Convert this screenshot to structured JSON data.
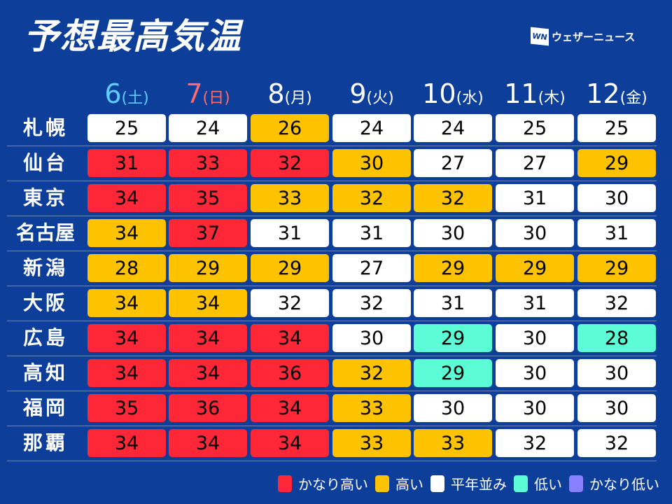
{
  "title": "予想最高気温",
  "brand": {
    "mark": "WN",
    "name": "ウェザーニュース"
  },
  "colors": {
    "background": "#0d3f9a",
    "r": "#fe2737",
    "y": "#fdc300",
    "w": "#ffffff",
    "t": "#5cfcd6",
    "p": "#8a80ff",
    "saturday": "#5ecdff",
    "sunday": "#ff6a6a"
  },
  "days": [
    {
      "day": "6",
      "weekday": "(土)",
      "color": "#5ecdff"
    },
    {
      "day": "7",
      "weekday": "(日)",
      "color": "#ff6a6a"
    },
    {
      "day": "8",
      "weekday": "(月)",
      "color": "#ffffff"
    },
    {
      "day": "9",
      "weekday": "(火)",
      "color": "#ffffff"
    },
    {
      "day": "10",
      "weekday": "(水)",
      "color": "#ffffff"
    },
    {
      "day": "11",
      "weekday": "(木)",
      "color": "#ffffff"
    },
    {
      "day": "12",
      "weekday": "(金)",
      "color": "#ffffff"
    }
  ],
  "rows": [
    {
      "city": "札幌",
      "temps": [
        "25",
        "24",
        "26",
        "24",
        "24",
        "25",
        "25"
      ],
      "levels": [
        "w",
        "w",
        "y",
        "w",
        "w",
        "w",
        "w"
      ]
    },
    {
      "city": "仙台",
      "temps": [
        "31",
        "33",
        "32",
        "30",
        "27",
        "27",
        "29"
      ],
      "levels": [
        "r",
        "r",
        "r",
        "y",
        "w",
        "w",
        "y"
      ]
    },
    {
      "city": "東京",
      "temps": [
        "34",
        "35",
        "33",
        "32",
        "32",
        "31",
        "30"
      ],
      "levels": [
        "r",
        "r",
        "y",
        "y",
        "y",
        "w",
        "w"
      ]
    },
    {
      "city": "名古屋",
      "temps": [
        "34",
        "37",
        "31",
        "31",
        "30",
        "30",
        "31"
      ],
      "levels": [
        "y",
        "r",
        "w",
        "w",
        "w",
        "w",
        "w"
      ]
    },
    {
      "city": "新潟",
      "temps": [
        "28",
        "29",
        "29",
        "27",
        "29",
        "29",
        "29"
      ],
      "levels": [
        "y",
        "y",
        "y",
        "w",
        "y",
        "y",
        "y"
      ]
    },
    {
      "city": "大阪",
      "temps": [
        "34",
        "34",
        "32",
        "32",
        "31",
        "31",
        "32"
      ],
      "levels": [
        "y",
        "y",
        "w",
        "w",
        "w",
        "w",
        "w"
      ]
    },
    {
      "city": "広島",
      "temps": [
        "34",
        "34",
        "34",
        "30",
        "29",
        "30",
        "28"
      ],
      "levels": [
        "r",
        "r",
        "r",
        "w",
        "t",
        "w",
        "t"
      ]
    },
    {
      "city": "高知",
      "temps": [
        "34",
        "34",
        "36",
        "32",
        "29",
        "30",
        "30"
      ],
      "levels": [
        "r",
        "r",
        "r",
        "y",
        "t",
        "w",
        "w"
      ]
    },
    {
      "city": "福岡",
      "temps": [
        "35",
        "36",
        "34",
        "33",
        "30",
        "30",
        "30"
      ],
      "levels": [
        "r",
        "r",
        "r",
        "y",
        "w",
        "w",
        "w"
      ]
    },
    {
      "city": "那覇",
      "temps": [
        "34",
        "34",
        "34",
        "33",
        "33",
        "32",
        "32"
      ],
      "levels": [
        "r",
        "r",
        "r",
        "y",
        "y",
        "w",
        "w"
      ]
    }
  ],
  "legend": [
    {
      "label": "かなり高い",
      "color": "#fe2737"
    },
    {
      "label": "高い",
      "color": "#fdc300"
    },
    {
      "label": "平年並み",
      "color": "#ffffff"
    },
    {
      "label": "低い",
      "color": "#5cfcd6"
    },
    {
      "label": "かなり低い",
      "color": "#8a80ff"
    }
  ]
}
